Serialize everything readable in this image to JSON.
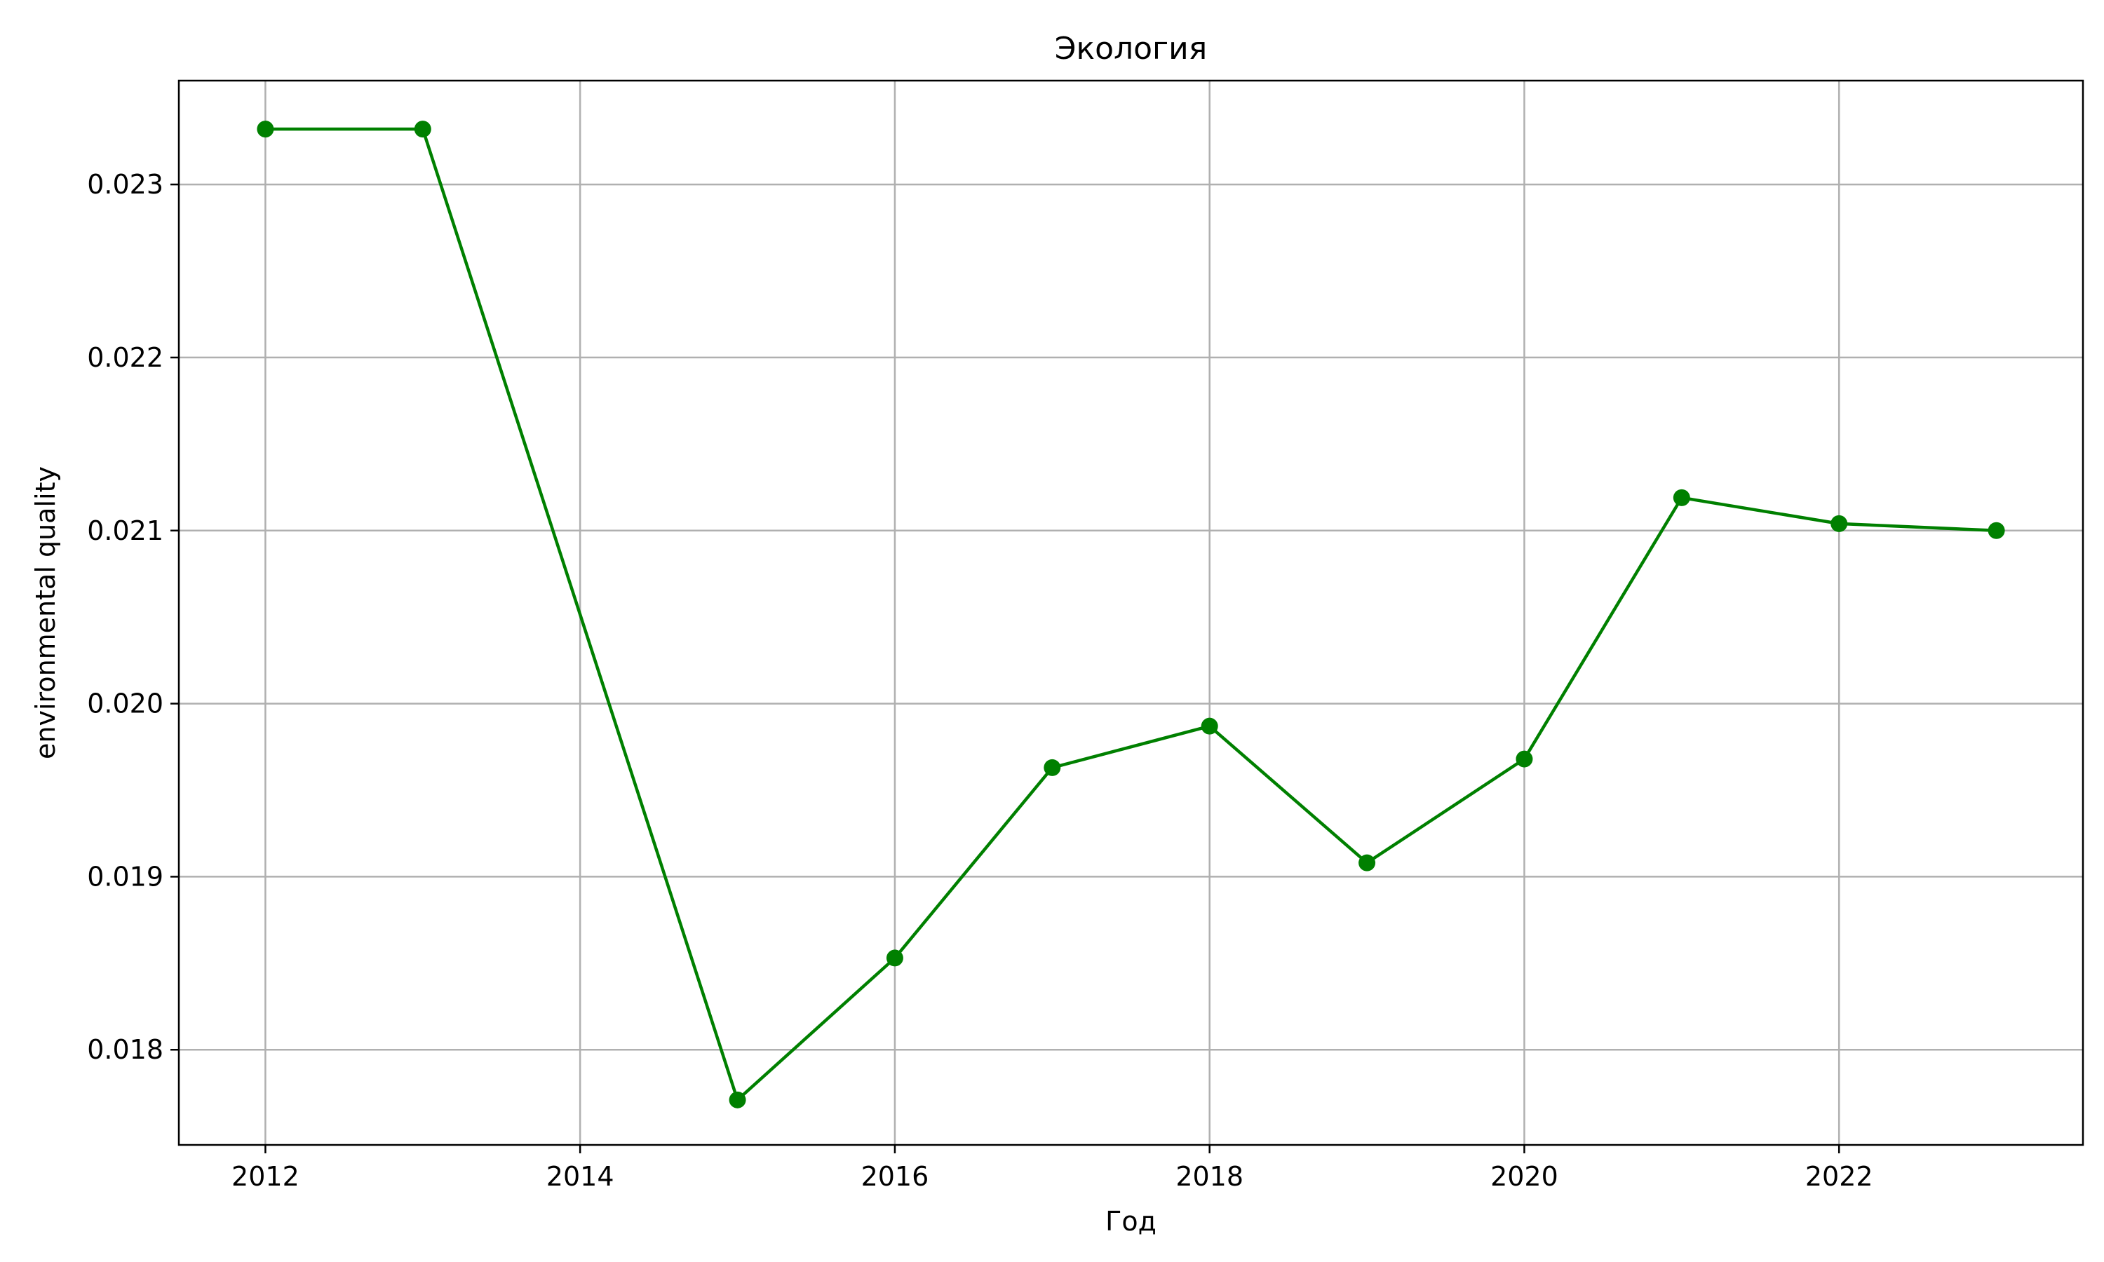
{
  "chart_data": {
    "type": "line",
    "title": "Экология",
    "xlabel": "Год",
    "ylabel": "environmental quality",
    "xlim": [
      2011.45,
      2023.55
    ],
    "ylim": [
      0.01745,
      0.0236
    ],
    "x_ticks": [
      2012,
      2014,
      2016,
      2018,
      2020,
      2022
    ],
    "x_tick_labels": [
      "2012",
      "2014",
      "2016",
      "2018",
      "2020",
      "2022"
    ],
    "y_ticks": [
      0.018,
      0.019,
      0.02,
      0.021,
      0.022,
      0.023
    ],
    "y_tick_labels": [
      "0.018",
      "0.019",
      "0.020",
      "0.021",
      "0.022",
      "0.023"
    ],
    "grid": true,
    "colors": {
      "series": "#008000",
      "grid": "#b0b0b0"
    },
    "series": [
      {
        "marker": "circle",
        "x": [
          2012,
          2013,
          2015,
          2016,
          2017,
          2018,
          2019,
          2020,
          2021,
          2022,
          2023
        ],
        "y": [
          0.02332,
          0.02332,
          0.01771,
          0.01853,
          0.01963,
          0.01987,
          0.01908,
          0.01968,
          0.02119,
          0.02104,
          0.021
        ]
      }
    ]
  }
}
